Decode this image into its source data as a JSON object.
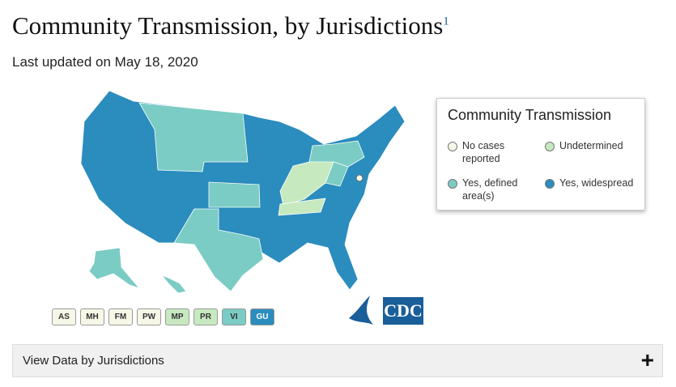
{
  "header": {
    "title": "Community Transmission, by Jurisdictions",
    "footnote": "1",
    "subtitle": "Last updated on May 18, 2020"
  },
  "legend": {
    "title": "Community Transmission",
    "items": [
      {
        "label": "No cases reported",
        "color": "#f7f7e8"
      },
      {
        "label": "Undetermined",
        "color": "#c7e9c0"
      },
      {
        "label": "Yes, defined area(s)",
        "color": "#7accc4"
      },
      {
        "label": "Yes, widespread",
        "color": "#2b8cbe"
      }
    ]
  },
  "territories": [
    {
      "label": "AS",
      "color": "#f7f7e8"
    },
    {
      "label": "MH",
      "color": "#f7f7e8"
    },
    {
      "label": "FM",
      "color": "#f7f7e8"
    },
    {
      "label": "PW",
      "color": "#f7f7e8"
    },
    {
      "label": "MP",
      "color": "#c7e9c0"
    },
    {
      "label": "PR",
      "color": "#c7e9c0"
    },
    {
      "label": "VI",
      "color": "#7accc4"
    },
    {
      "label": "GU",
      "color": "#2b8cbe"
    }
  ],
  "logo": "CDC",
  "accordion": {
    "label": "View Data by Jurisdictions",
    "icon": "+"
  }
}
